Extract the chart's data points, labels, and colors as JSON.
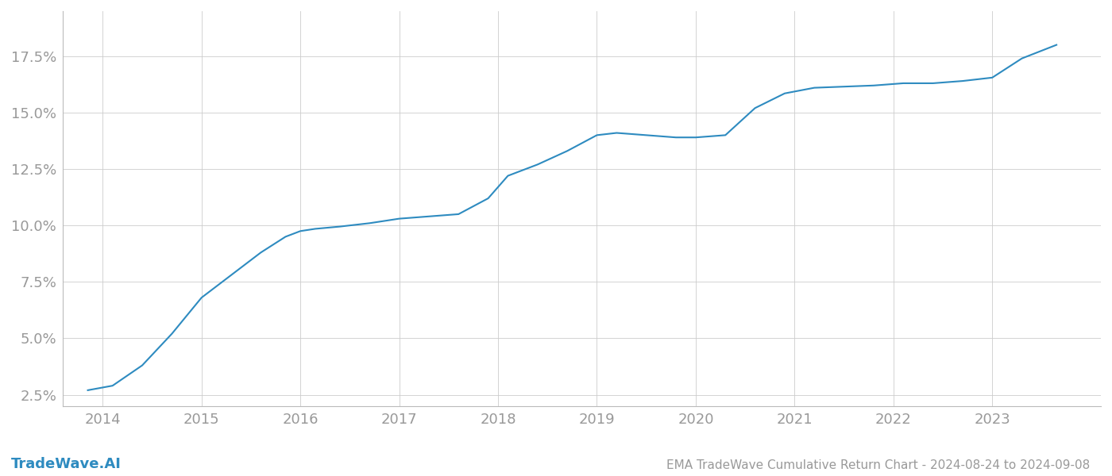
{
  "title": "EMA TradeWave Cumulative Return Chart - 2024-08-24 to 2024-09-08",
  "watermark": "TradeWave.AI",
  "line_color": "#2e8bc0",
  "background_color": "#ffffff",
  "grid_color": "#cccccc",
  "x_values": [
    2013.85,
    2014.1,
    2014.4,
    2014.7,
    2015.0,
    2015.3,
    2015.6,
    2015.85,
    2016.0,
    2016.15,
    2016.4,
    2016.7,
    2017.0,
    2017.3,
    2017.6,
    2017.9,
    2018.1,
    2018.4,
    2018.7,
    2019.0,
    2019.2,
    2019.5,
    2019.8,
    2020.0,
    2020.3,
    2020.6,
    2020.9,
    2021.2,
    2021.5,
    2021.8,
    2022.1,
    2022.4,
    2022.7,
    2023.0,
    2023.3,
    2023.65
  ],
  "y_values": [
    2.7,
    2.9,
    3.8,
    5.2,
    6.8,
    7.8,
    8.8,
    9.5,
    9.75,
    9.85,
    9.95,
    10.1,
    10.3,
    10.4,
    10.5,
    11.2,
    12.2,
    12.7,
    13.3,
    14.0,
    14.1,
    14.0,
    13.9,
    13.9,
    14.0,
    15.2,
    15.85,
    16.1,
    16.15,
    16.2,
    16.3,
    16.3,
    16.4,
    16.55,
    17.4,
    18.0
  ],
  "xlim": [
    2013.6,
    2024.1
  ],
  "ylim": [
    2.0,
    19.5
  ],
  "yticks": [
    2.5,
    5.0,
    7.5,
    10.0,
    12.5,
    15.0,
    17.5
  ],
  "xticks": [
    2014,
    2015,
    2016,
    2017,
    2018,
    2019,
    2020,
    2021,
    2022,
    2023
  ],
  "tick_label_color": "#999999",
  "line_width": 1.5,
  "title_fontsize": 11,
  "tick_fontsize": 13,
  "watermark_fontsize": 13,
  "spine_color": "#bbbbbb"
}
